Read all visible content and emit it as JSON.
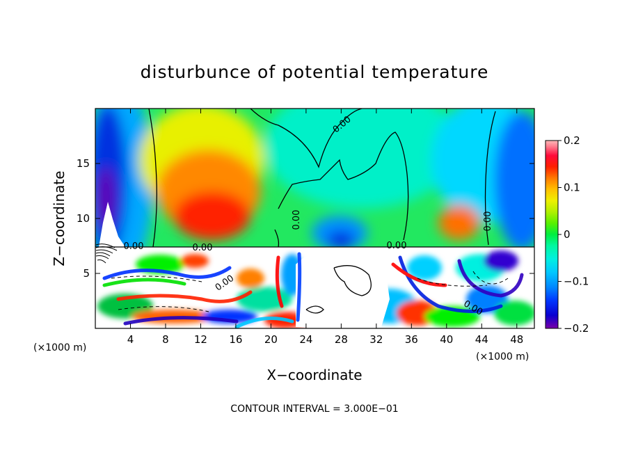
{
  "chart_data": {
    "type": "heatmap",
    "title": "disturbunce of potential temperature",
    "xlabel": "X−coordinate",
    "ylabel": "Z−coordinate",
    "x_unit": "(×1000 m)",
    "xlim": [
      0,
      50
    ],
    "ylim": [
      0,
      20
    ],
    "x_ticks": [
      4,
      8,
      12,
      16,
      20,
      24,
      28,
      32,
      36,
      40,
      44,
      48
    ],
    "y_ticks": [
      5,
      10,
      15
    ],
    "colorbar": {
      "range": [
        -0.2,
        0.2
      ],
      "ticks": [
        0.2,
        0.1,
        0,
        -0.1,
        -0.2
      ],
      "tick_labels": [
        "0.2",
        "0.1",
        "0",
        "−0.1",
        "−0.2"
      ],
      "colors": [
        "#7a00a8",
        "#0a00d0",
        "#0038ff",
        "#0088ff",
        "#00c8ff",
        "#00f0e0",
        "#00f8a0",
        "#00ee40",
        "#58f000",
        "#b0f000",
        "#eef000",
        "#ffc000",
        "#ff7a00",
        "#ff2000",
        "#ff0a3a",
        "#ff8090",
        "#ffb8b8"
      ]
    },
    "contour_labels": [
      "0.00",
      "0.00",
      "0.00",
      "0.00",
      "0.00",
      "0.00",
      "0.00",
      "0.00"
    ],
    "footer": "CONTOUR INTERVAL = 3.000E−01"
  }
}
